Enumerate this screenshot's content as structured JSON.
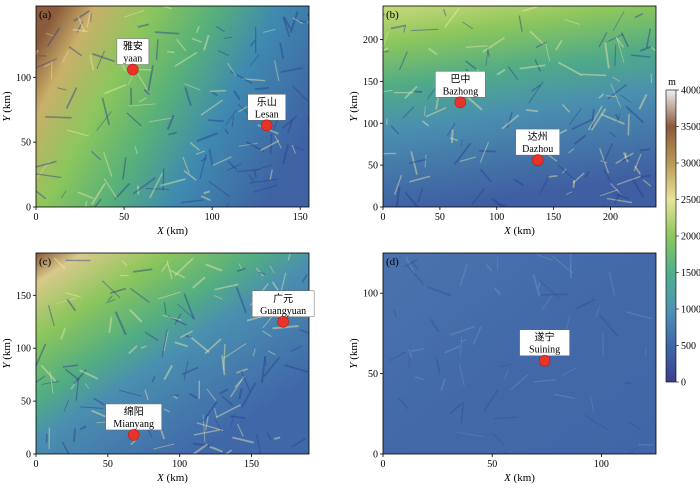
{
  "colorbar": {
    "unit": "m",
    "ticks": [
      0,
      500,
      1000,
      1500,
      2000,
      2500,
      3000,
      3500,
      4000
    ],
    "range": [
      0,
      4000
    ],
    "stops": [
      "#3b3f8f",
      "#3f67a8",
      "#4f94b3",
      "#4fb08c",
      "#8cc65c",
      "#e8e49a",
      "#b89a58",
      "#8a5a3c",
      "#f2eef0"
    ]
  },
  "axes": {
    "x_label": "X",
    "y_label": "Y",
    "unit": "(km)"
  },
  "panels": [
    {
      "id": "a",
      "label": "(a)",
      "xlim": [
        0,
        155
      ],
      "ylim": [
        0,
        155
      ],
      "xticks": [
        0,
        50,
        100,
        150
      ],
      "yticks": [
        0,
        50,
        100
      ],
      "cities": [
        {
          "cn": "雅安",
          "en": "yaan",
          "x": 55,
          "y": 106
        },
        {
          "cn": "乐山",
          "en": "Lesan",
          "x": 131,
          "y": 63
        }
      ],
      "terrain": "mountain-west"
    },
    {
      "id": "b",
      "label": "(b)",
      "xlim": [
        0,
        240
      ],
      "ylim": [
        0,
        240
      ],
      "xticks": [
        0,
        50,
        100,
        150,
        200
      ],
      "yticks": [
        0,
        50,
        100,
        150,
        200
      ],
      "cities": [
        {
          "cn": "巴中",
          "en": "Bazhong",
          "x": 68,
          "y": 125
        },
        {
          "cn": "达州",
          "en": "Dazhou",
          "x": 136,
          "y": 56
        }
      ],
      "terrain": "mountain-north"
    },
    {
      "id": "c",
      "label": "(c)",
      "xlim": [
        0,
        190
      ],
      "ylim": [
        0,
        190
      ],
      "xticks": [
        0,
        50,
        100,
        150
      ],
      "yticks": [
        0,
        50,
        100,
        150
      ],
      "cities": [
        {
          "cn": "广元",
          "en": "Guangyuan",
          "x": 172,
          "y": 125
        },
        {
          "cn": "绵阳",
          "en": "Mianyang",
          "x": 68,
          "y": 18
        }
      ],
      "terrain": "mountain-northwest"
    },
    {
      "id": "d",
      "label": "(d)",
      "xlim": [
        0,
        125
      ],
      "ylim": [
        0,
        125
      ],
      "xticks": [
        0,
        50,
        100
      ],
      "yticks": [
        0,
        50,
        100
      ],
      "cities": [
        {
          "cn": "遂宁",
          "en": "Suining",
          "x": 74,
          "y": 58
        }
      ],
      "terrain": "basin"
    }
  ]
}
